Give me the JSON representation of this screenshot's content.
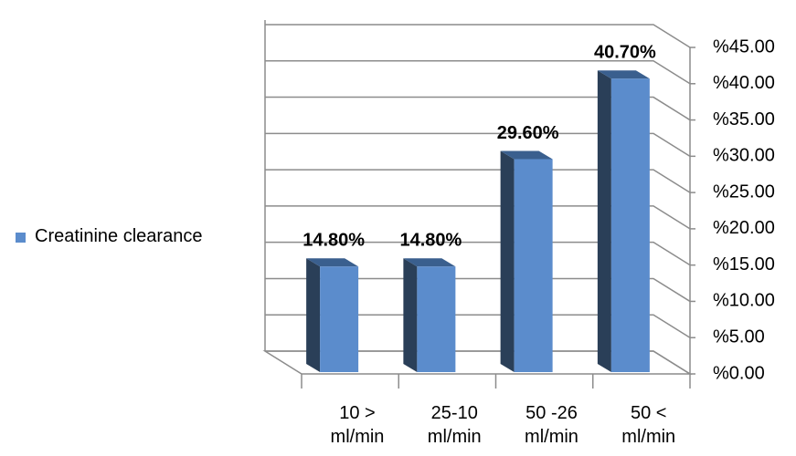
{
  "chart_data": {
    "type": "bar",
    "categories": [
      "10 >\nml/min",
      "25-10\nml/min",
      "50 -26\nml/min",
      "50 <\nml/min"
    ],
    "series": [
      {
        "name": "Creatinine clearance",
        "color": "#5b8ccc",
        "values": [
          14.8,
          14.8,
          29.6,
          40.7
        ],
        "value_labels": [
          "14.80%",
          "14.80%",
          "29.60%",
          "40.70%"
        ]
      }
    ],
    "ylim": [
      0,
      45
    ],
    "yticks": [
      {
        "value": 0,
        "label": "%0.00"
      },
      {
        "value": 5,
        "label": "%5.00"
      },
      {
        "value": 10,
        "label": "%10.00"
      },
      {
        "value": 15,
        "label": "%15.00"
      },
      {
        "value": 20,
        "label": "%20.00"
      },
      {
        "value": 25,
        "label": "%25.00"
      },
      {
        "value": 30,
        "label": "%30.00"
      },
      {
        "value": 35,
        "label": "%35.00"
      },
      {
        "value": 40,
        "label": "%40.00"
      },
      {
        "value": 45,
        "label": "%45.00"
      }
    ],
    "grid": true,
    "legend": "left"
  }
}
